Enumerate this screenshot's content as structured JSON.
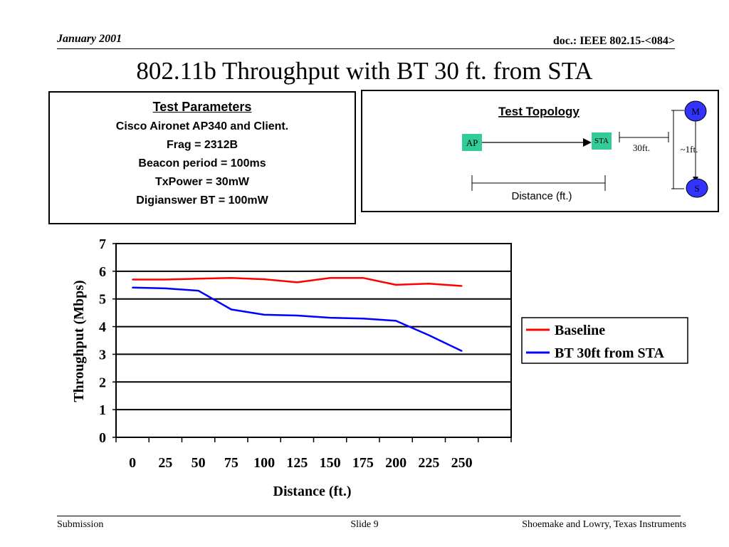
{
  "header": {
    "date": "January 2001",
    "doc": "doc.: IEEE 802.15-<084>"
  },
  "slide_title": "802.11b Throughput with BT 30 ft. from STA",
  "parameters": {
    "title": "Test Parameters",
    "lines": [
      "Cisco Aironet AP340 and Client.",
      "Frag = 2312B",
      "Beacon period = 100ms",
      "TxPower = 30mW",
      "Digianswer BT = 100mW"
    ]
  },
  "topology": {
    "title": "Test Topology",
    "ap": "AP",
    "sta": "STA",
    "m": "M",
    "s": "S",
    "dist_30": "30ft.",
    "dist_1": "~1ft.",
    "distance": "Distance (ft.)",
    "colors": {
      "node": "#33cc99",
      "circle": "#3333ff"
    }
  },
  "chart_data": {
    "type": "line",
    "x": [
      0,
      25,
      50,
      75,
      100,
      125,
      150,
      175,
      200,
      225,
      250
    ],
    "series": [
      {
        "name": "Baseline",
        "color": "#ff0000",
        "values": [
          5.7,
          5.7,
          5.73,
          5.76,
          5.71,
          5.6,
          5.76,
          5.76,
          5.51,
          5.55,
          5.47
        ]
      },
      {
        "name": "BT 30ft from STA",
        "color": "#0000ff",
        "values": [
          5.41,
          5.38,
          5.3,
          4.62,
          4.43,
          4.4,
          4.32,
          4.29,
          4.21,
          3.69,
          3.12
        ]
      }
    ],
    "xlabel": "Distance (ft.)",
    "ylabel": "Throughput (Mbps)",
    "ylim": [
      0,
      7
    ],
    "yticks": [
      0,
      1,
      2,
      3,
      4,
      5,
      6,
      7
    ],
    "grid": true,
    "legend": "right"
  },
  "footer": {
    "left": "Submission",
    "center": "Slide 9",
    "right": "Shoemake and Lowry, Texas Instruments"
  }
}
